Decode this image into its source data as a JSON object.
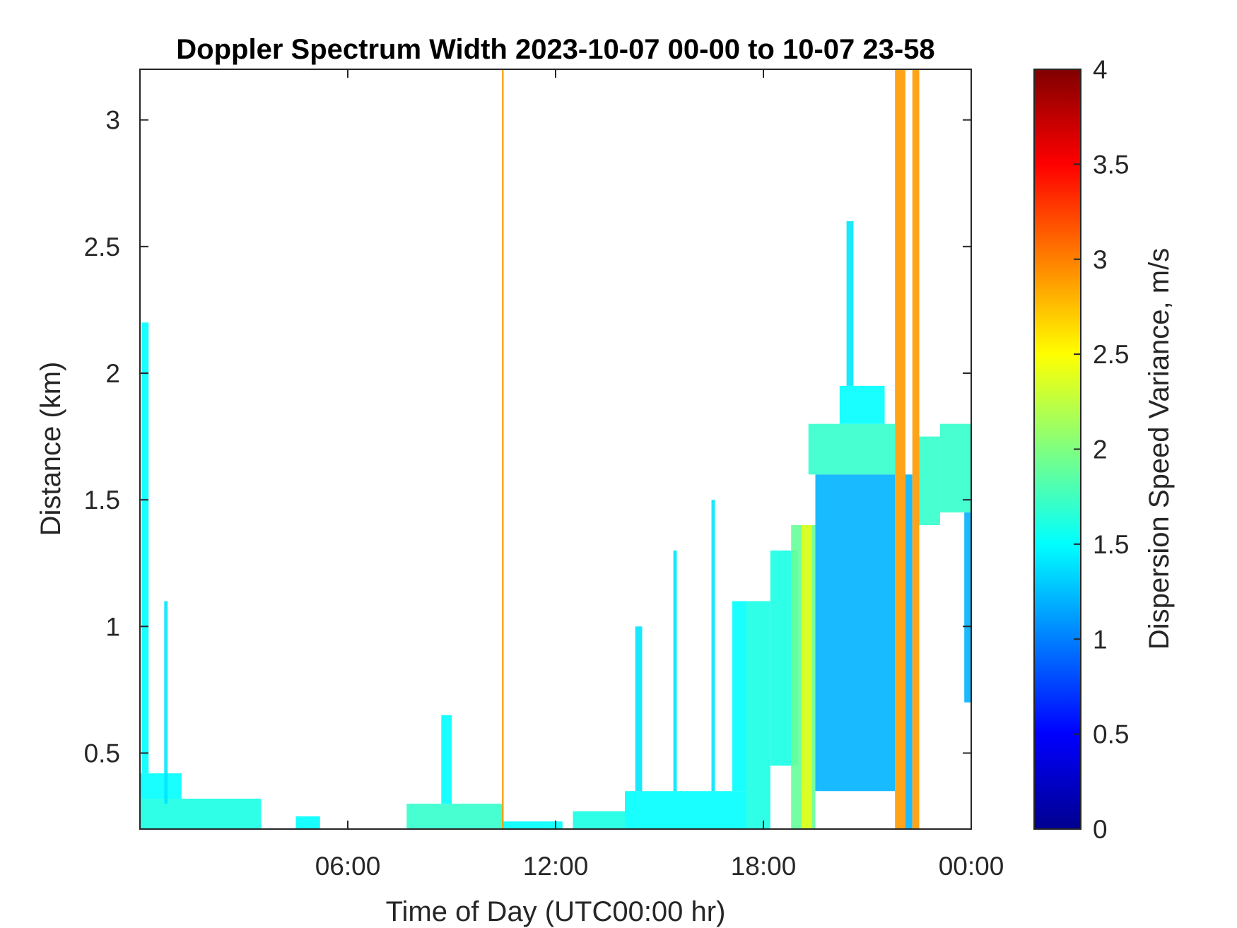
{
  "chart_data": {
    "type": "heatmap",
    "title": "Doppler Spectrum Width 2023-10-07 00-00 to 10-07 23-58",
    "xlabel": "Time of Day (UTC00:00 hr)",
    "ylabel": "Distance (km)",
    "colorbar_label": "Dispersion Speed Variance, m/s",
    "colormap": "jet",
    "xlim": [
      0,
      24
    ],
    "ylim": [
      0.2,
      3.2
    ],
    "clim": [
      0,
      4
    ],
    "x_ticks": [
      {
        "value": 6,
        "label": "06:00"
      },
      {
        "value": 12,
        "label": "12:00"
      },
      {
        "value": 18,
        "label": "18:00"
      },
      {
        "value": 24,
        "label": "00:00"
      }
    ],
    "y_ticks": [
      {
        "value": 0.5,
        "label": "0.5"
      },
      {
        "value": 1,
        "label": "1"
      },
      {
        "value": 1.5,
        "label": "1.5"
      },
      {
        "value": 2,
        "label": "2"
      },
      {
        "value": 2.5,
        "label": "2.5"
      },
      {
        "value": 3,
        "label": "3"
      }
    ],
    "colorbar_ticks": [
      {
        "value": 0,
        "label": "0"
      },
      {
        "value": 0.5,
        "label": "0.5"
      },
      {
        "value": 1,
        "label": "1"
      },
      {
        "value": 1.5,
        "label": "1.5"
      },
      {
        "value": 2,
        "label": "2"
      },
      {
        "value": 2.5,
        "label": "2.5"
      },
      {
        "value": 3,
        "label": "3"
      },
      {
        "value": 3.5,
        "label": "3.5"
      },
      {
        "value": 4,
        "label": "4"
      }
    ],
    "regions": [
      {
        "x0": 0.0,
        "x1": 3.5,
        "y0": 0.2,
        "y1": 0.32,
        "value": 1.6
      },
      {
        "x0": 0.0,
        "x1": 1.2,
        "y0": 0.32,
        "y1": 0.42,
        "value": 1.5
      },
      {
        "x0": 0.05,
        "x1": 0.25,
        "y0": 0.42,
        "y1": 2.2,
        "value": 1.5
      },
      {
        "x0": 0.7,
        "x1": 0.8,
        "y0": 0.3,
        "y1": 1.1,
        "value": 1.4
      },
      {
        "x0": 4.5,
        "x1": 5.2,
        "y0": 0.2,
        "y1": 0.25,
        "value": 1.5
      },
      {
        "x0": 7.7,
        "x1": 10.5,
        "y0": 0.2,
        "y1": 0.3,
        "value": 1.7
      },
      {
        "x0": 8.7,
        "x1": 9.0,
        "y0": 0.3,
        "y1": 0.65,
        "value": 1.5
      },
      {
        "x0": 10.5,
        "x1": 12.2,
        "y0": 0.2,
        "y1": 0.23,
        "value": 1.5
      },
      {
        "x0": 12.5,
        "x1": 14.0,
        "y0": 0.2,
        "y1": 0.27,
        "value": 1.6
      },
      {
        "x0": 14.0,
        "x1": 17.5,
        "y0": 0.2,
        "y1": 0.35,
        "value": 1.5
      },
      {
        "x0": 14.3,
        "x1": 14.5,
        "y0": 0.35,
        "y1": 1.0,
        "value": 1.4
      },
      {
        "x0": 15.4,
        "x1": 15.5,
        "y0": 0.35,
        "y1": 1.3,
        "value": 1.4
      },
      {
        "x0": 16.5,
        "x1": 16.6,
        "y0": 0.35,
        "y1": 1.5,
        "value": 1.4
      },
      {
        "x0": 17.1,
        "x1": 17.5,
        "y0": 0.35,
        "y1": 1.1,
        "value": 1.5
      },
      {
        "x0": 17.5,
        "x1": 18.2,
        "y0": 0.2,
        "y1": 1.1,
        "value": 1.6
      },
      {
        "x0": 18.2,
        "x1": 19.0,
        "y0": 0.45,
        "y1": 1.3,
        "value": 1.6
      },
      {
        "x0": 18.8,
        "x1": 19.5,
        "y0": 0.2,
        "y1": 1.4,
        "value": 1.9
      },
      {
        "x0": 19.1,
        "x1": 19.4,
        "y0": 0.2,
        "y1": 1.4,
        "value": 2.4
      },
      {
        "x0": 19.5,
        "x1": 21.8,
        "y0": 0.35,
        "y1": 1.6,
        "value": 1.2
      },
      {
        "x0": 19.3,
        "x1": 21.8,
        "y0": 1.6,
        "y1": 1.8,
        "value": 1.7
      },
      {
        "x0": 20.2,
        "x1": 21.5,
        "y0": 1.8,
        "y1": 1.95,
        "value": 1.5
      },
      {
        "x0": 20.4,
        "x1": 20.6,
        "y0": 1.95,
        "y1": 2.6,
        "value": 1.4
      },
      {
        "x0": 21.8,
        "x1": 22.1,
        "y0": 0.2,
        "y1": 3.2,
        "value": 2.9
      },
      {
        "x0": 22.1,
        "x1": 22.3,
        "y0": 0.2,
        "y1": 1.6,
        "value": 1.2
      },
      {
        "x0": 22.3,
        "x1": 22.5,
        "y0": 0.2,
        "y1": 3.2,
        "value": 2.9
      },
      {
        "x0": 22.5,
        "x1": 23.1,
        "y0": 1.4,
        "y1": 1.75,
        "value": 1.7
      },
      {
        "x0": 23.1,
        "x1": 24.0,
        "y0": 1.45,
        "y1": 1.8,
        "value": 1.7
      },
      {
        "x0": 23.8,
        "x1": 24.0,
        "y0": 0.7,
        "y1": 1.45,
        "value": 1.2
      },
      {
        "x0": 10.45,
        "x1": 10.5,
        "y0": 0.2,
        "y1": 3.2,
        "value": 2.9
      }
    ]
  }
}
